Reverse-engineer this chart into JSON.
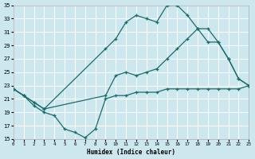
{
  "xlabel": "Humidex (Indice chaleur)",
  "bg_color": "#cce8ee",
  "grid_color": "#b0d8de",
  "line_color": "#1a6b6b",
  "xlim": [
    0,
    23
  ],
  "ylim": [
    15,
    35
  ],
  "yticks": [
    15,
    17,
    19,
    21,
    23,
    25,
    27,
    29,
    31,
    33,
    35
  ],
  "xticks": [
    0,
    1,
    2,
    3,
    4,
    5,
    6,
    7,
    8,
    9,
    10,
    11,
    12,
    13,
    14,
    15,
    16,
    17,
    18,
    19,
    20,
    21,
    22,
    23
  ],
  "curve_top_x": [
    0,
    1,
    2,
    3,
    9,
    10,
    11,
    12,
    13,
    14,
    15,
    16,
    17,
    18,
    19,
    20,
    21,
    22,
    23
  ],
  "curve_top_y": [
    22.5,
    21.5,
    20.5,
    19.5,
    28.5,
    30.0,
    32.5,
    33.5,
    33.0,
    32.5,
    35.0,
    35.0,
    33.5,
    31.5,
    29.5,
    29.5,
    27.0,
    24.0,
    23.0
  ],
  "curve_mid_x": [
    0,
    1,
    2,
    3,
    9,
    10,
    11,
    12,
    13,
    14,
    15,
    16,
    17,
    18,
    19,
    20,
    21,
    22,
    23
  ],
  "curve_mid_y": [
    22.5,
    21.5,
    20.5,
    19.5,
    21.5,
    24.5,
    25.0,
    24.5,
    25.0,
    25.5,
    27.0,
    28.5,
    30.0,
    31.5,
    31.5,
    29.5,
    27.0,
    24.0,
    23.0
  ],
  "curve_bot_x": [
    0,
    1,
    2,
    3,
    4,
    5,
    6,
    7,
    8,
    9,
    10,
    11,
    12,
    13,
    14,
    15,
    16,
    17,
    18,
    19,
    20,
    21,
    22,
    23
  ],
  "curve_bot_y": [
    22.5,
    21.5,
    20.0,
    19.0,
    18.5,
    16.5,
    16.0,
    15.2,
    16.5,
    21.0,
    21.5,
    21.5,
    22.0,
    22.0,
    22.0,
    22.5,
    22.5,
    22.5,
    22.5,
    22.5,
    22.5,
    22.5,
    22.5,
    23.0
  ]
}
